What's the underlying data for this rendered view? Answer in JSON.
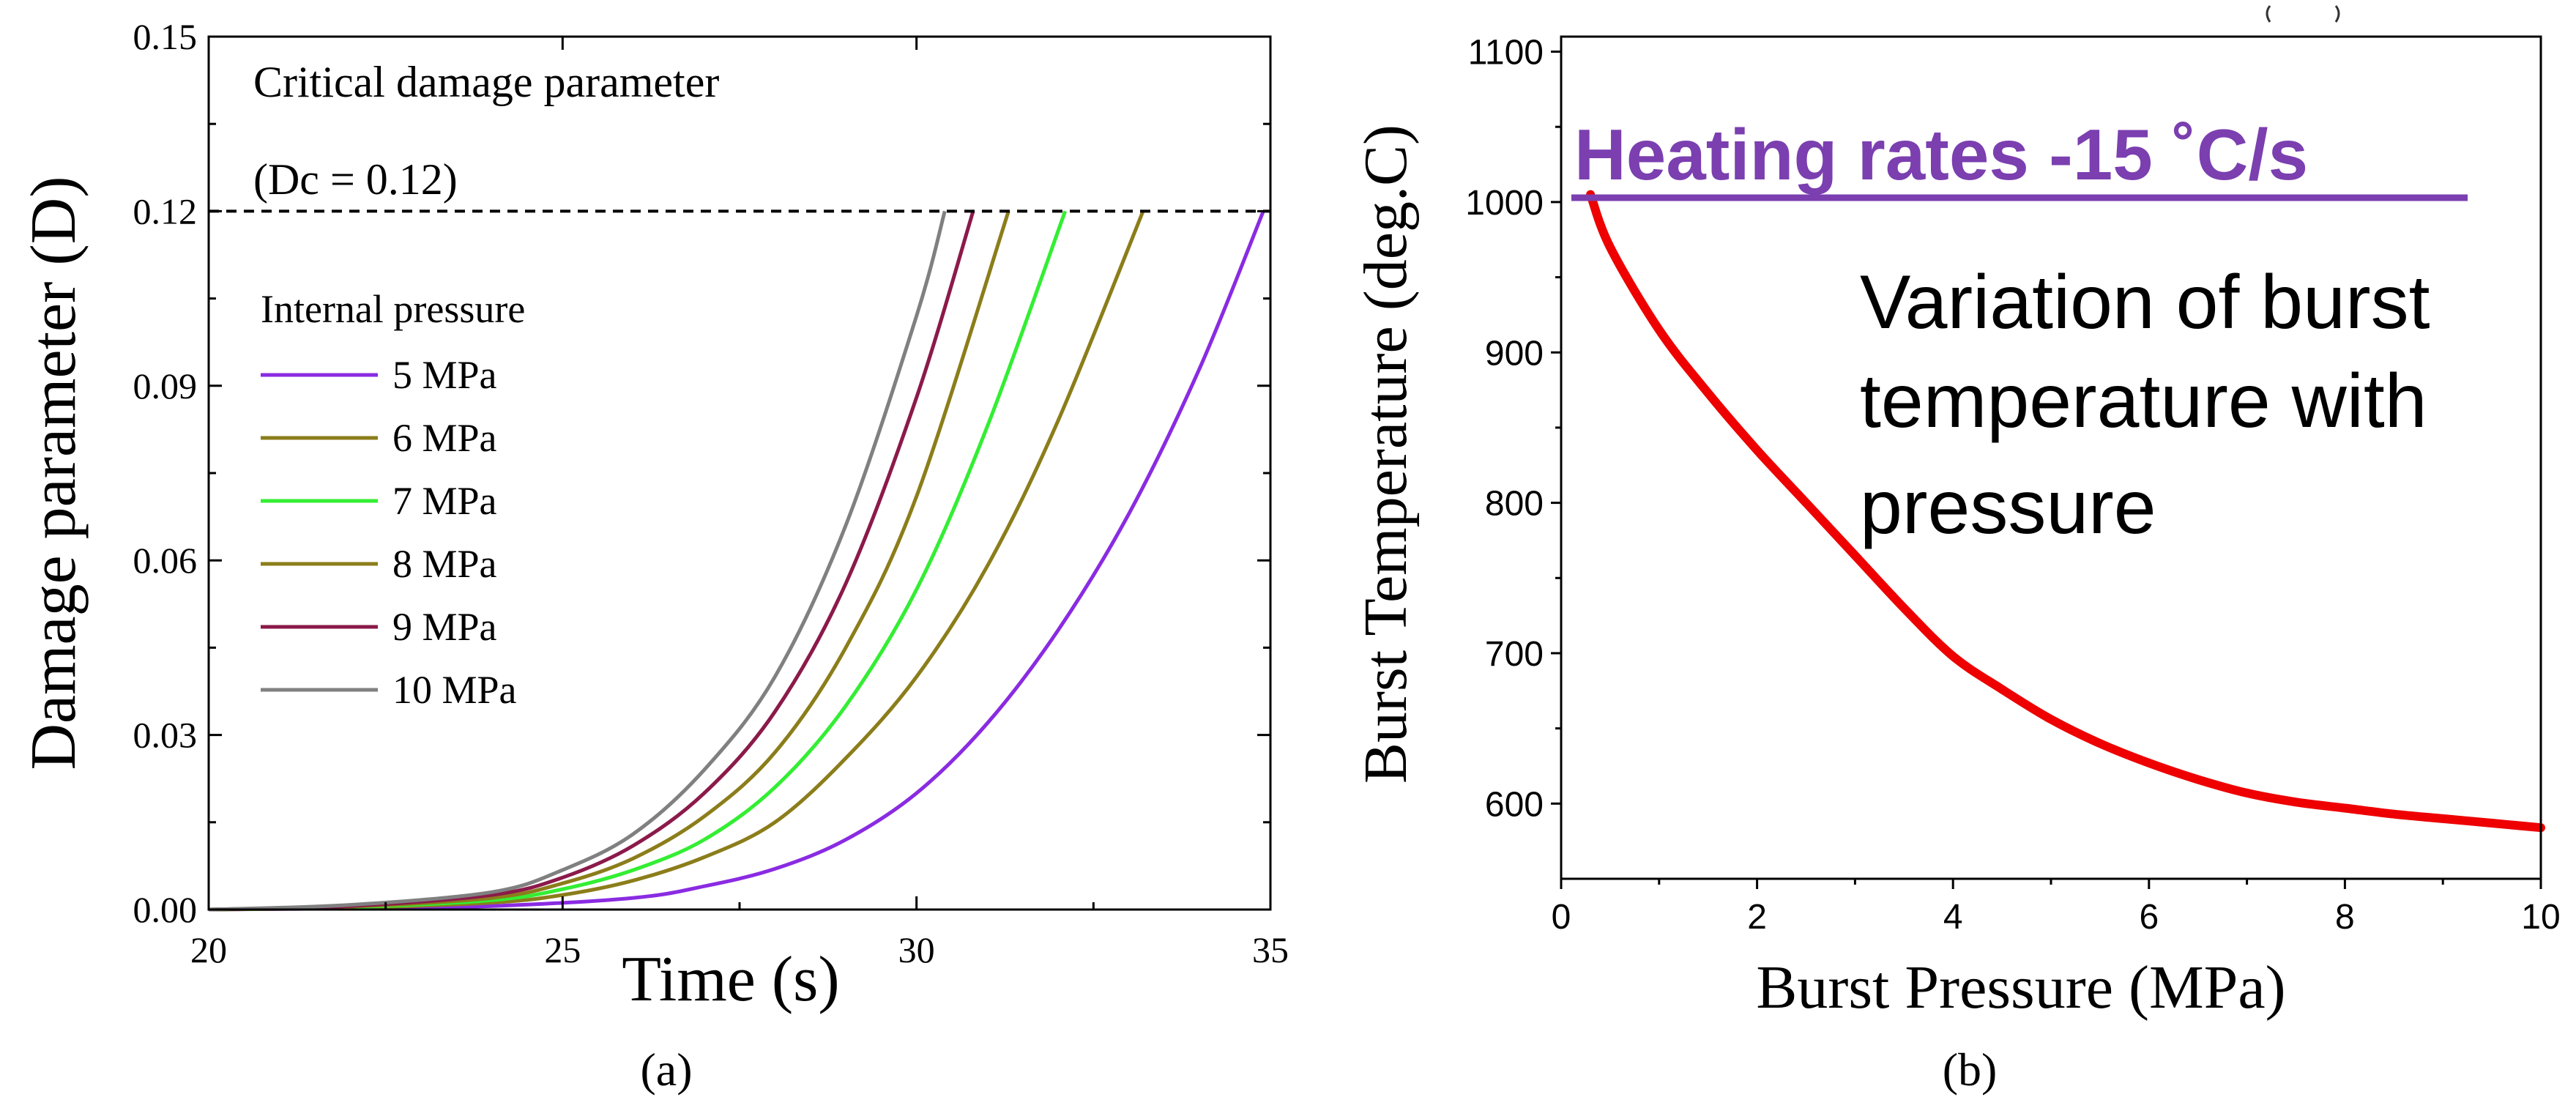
{
  "chart_data": [
    {
      "type": "line",
      "panel_label": "(a)",
      "xlabel": "Time (s)",
      "ylabel": "Damage parameter (D)",
      "xlim": [
        20,
        35
      ],
      "ylim": [
        0,
        0.15
      ],
      "xticks": [
        "20",
        "25",
        "30",
        "35"
      ],
      "yticks": [
        "0.00",
        "0.03",
        "0.06",
        "0.09",
        "0.12",
        "0.15"
      ],
      "annotation_line1": "Critical damage parameter",
      "annotation_line2": "(Dc = 0.12)",
      "critical_value": 0.12,
      "legend_title": "Internal pressure",
      "series": [
        {
          "name": "5 MPa",
          "color": "#8a2be2",
          "burst_time": 34.9,
          "x": [
            20,
            22,
            24,
            26,
            27,
            28,
            29,
            30,
            31,
            32,
            33,
            34,
            34.9
          ],
          "y": [
            0,
            0.0002,
            0.0006,
            0.002,
            0.004,
            0.007,
            0.012,
            0.02,
            0.032,
            0.048,
            0.068,
            0.093,
            0.12
          ]
        },
        {
          "name": "6 MPa",
          "color": "#8b7d1a",
          "burst_time": 33.2,
          "x": [
            20,
            22,
            24,
            25,
            26,
            27,
            28,
            29,
            30,
            31,
            32,
            33.2
          ],
          "y": [
            0,
            0.0003,
            0.0012,
            0.0025,
            0.005,
            0.009,
            0.015,
            0.026,
            0.04,
            0.059,
            0.084,
            0.12
          ]
        },
        {
          "name": "7 MPa",
          "color": "#33ee33",
          "burst_time": 32.1,
          "x": [
            20,
            22,
            24,
            25,
            26,
            27,
            28,
            29,
            30,
            31,
            32.1
          ],
          "y": [
            0,
            0.0004,
            0.0016,
            0.0035,
            0.0068,
            0.012,
            0.021,
            0.035,
            0.055,
            0.083,
            0.12
          ]
        },
        {
          "name": "8 MPa",
          "color": "#8b7d1a",
          "burst_time": 31.3,
          "x": [
            20,
            22,
            24,
            25,
            26,
            27,
            28,
            29,
            30,
            31.3
          ],
          "y": [
            0,
            0.0005,
            0.002,
            0.0045,
            0.0088,
            0.016,
            0.027,
            0.045,
            0.071,
            0.12
          ]
        },
        {
          "name": "9 MPa",
          "color": "#8b1a4a",
          "burst_time": 30.8,
          "x": [
            20,
            22,
            24,
            25,
            26,
            27,
            28,
            29,
            30,
            30.8
          ],
          "y": [
            0,
            0.0006,
            0.0025,
            0.0055,
            0.011,
            0.02,
            0.034,
            0.056,
            0.088,
            0.12
          ]
        },
        {
          "name": "10 MPa",
          "color": "#808080",
          "burst_time": 30.4,
          "x": [
            20,
            22,
            24,
            25,
            26,
            27,
            28,
            29,
            30,
            30.4
          ],
          "y": [
            0,
            0.0008,
            0.003,
            0.0068,
            0.013,
            0.024,
            0.04,
            0.066,
            0.102,
            0.12
          ]
        }
      ]
    },
    {
      "type": "line",
      "panel_label": "(b)",
      "xlabel": "Burst Pressure (MPa)",
      "ylabel": "Burst Temperature (deg.C)",
      "xlim": [
        0,
        10
      ],
      "ylim": [
        550,
        1110
      ],
      "xticks": [
        "0",
        "2",
        "4",
        "6",
        "8",
        "10"
      ],
      "yticks": [
        "600",
        "700",
        "800",
        "900",
        "1000",
        "1100"
      ],
      "title": "Heating rates -15 ˚C/s",
      "annotation_lines": [
        "Variation of burst",
        "temperature with",
        "pressure"
      ],
      "series": [
        {
          "name": "Burst temperature",
          "color": "#ee0000",
          "x": [
            0.3,
            0.5,
            1,
            1.5,
            2,
            2.5,
            3,
            3.5,
            4,
            4.5,
            5,
            5.5,
            6,
            6.5,
            7,
            7.5,
            8,
            8.5,
            9,
            9.5,
            10
          ],
          "y": [
            1005,
            970,
            915,
            873,
            835,
            800,
            765,
            730,
            698,
            676,
            656,
            640,
            627,
            616,
            607,
            601,
            597,
            593,
            590,
            587,
            584
          ]
        }
      ]
    }
  ]
}
